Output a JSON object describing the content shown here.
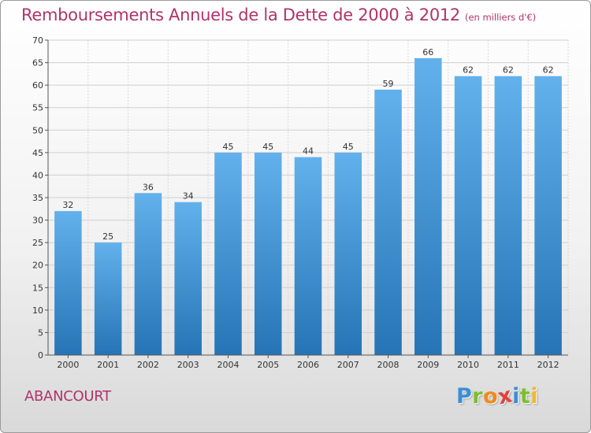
{
  "title": "Remboursements Annuels de la Dette de 2000 à 2012",
  "unit": "(en milliers d'€)",
  "commune": "ABANCOURT",
  "logo": {
    "letters": [
      "P",
      "r",
      "o",
      "x",
      "i",
      "t",
      "i"
    ],
    "colors": [
      "#3a8fd6",
      "#7cbf2e",
      "#f08a1c",
      "#e0443c",
      "#3a8fd6",
      "#7cbf2e",
      "#f2b824"
    ]
  },
  "colors": {
    "bar_light": "#62b1ec",
    "bar_dark": "#2674b5",
    "title": "#b0336b"
  },
  "chart_data": {
    "type": "bar",
    "categories": [
      "2000",
      "2001",
      "2002",
      "2003",
      "2004",
      "2005",
      "2006",
      "2007",
      "2008",
      "2009",
      "2010",
      "2011",
      "2012"
    ],
    "values": [
      32,
      25,
      36,
      34,
      45,
      45,
      44,
      45,
      59,
      66,
      62,
      62,
      62
    ],
    "ylim": [
      0,
      70
    ],
    "yticks": [
      0,
      5,
      10,
      15,
      20,
      25,
      30,
      35,
      40,
      45,
      50,
      55,
      60,
      65,
      70
    ],
    "grid": true,
    "data_labels": true
  }
}
